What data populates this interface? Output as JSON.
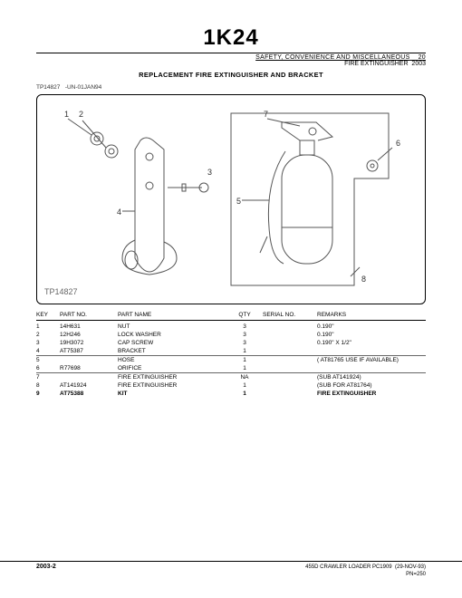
{
  "page_code": "1K24",
  "section_title": "SAFETY, CONVENIENCE AND MISCELLANEOUS",
  "section_num": "20",
  "section_sub": "FIRE EXTINGUISHER",
  "section_sub_code": "2003",
  "title": "REPLACEMENT FIRE EXTINGUISHER AND BRACKET",
  "tp_ref": "TP14827",
  "tp_date": "-UN-01JAN94",
  "fig_caption": "TP14827",
  "callouts": [
    "1",
    "2",
    "3",
    "4",
    "5",
    "6",
    "7",
    "8"
  ],
  "table": {
    "headers": {
      "key": "KEY",
      "part_no": "PART NO.",
      "part_name": "PART NAME",
      "qty": "QTY",
      "serial": "SERIAL NO.",
      "remarks": "REMARKS"
    },
    "rows": [
      {
        "key": "1",
        "part": "14H631",
        "name": "NUT",
        "qty": "3",
        "serial": "",
        "remarks": "0.190\""
      },
      {
        "key": "2",
        "part": "12H246",
        "name": "LOCK WASHER",
        "qty": "3",
        "serial": "",
        "remarks": "0.190\""
      },
      {
        "key": "3",
        "part": "19H3072",
        "name": "CAP SCREW",
        "qty": "3",
        "serial": "",
        "remarks": "0.190\" X 1/2\""
      },
      {
        "key": "4",
        "part": "AT75387",
        "name": "BRACKET",
        "qty": "1",
        "serial": "",
        "remarks": ""
      },
      {
        "key": "5",
        "part": "",
        "name": "HOSE",
        "qty": "1",
        "serial": "",
        "remarks": "( AT81765 USE IF AVAILABLE)",
        "divider_before": true
      },
      {
        "key": "6",
        "part": "R77698",
        "name": "ORIFICE",
        "qty": "1",
        "serial": "",
        "remarks": ""
      },
      {
        "key": "7",
        "part": "",
        "name": "FIRE EXTINGUISHER",
        "qty": "NA",
        "serial": "",
        "remarks": "(SUB AT141924)",
        "divider_before": true
      },
      {
        "key": "8",
        "part": "AT141924",
        "name": "FIRE EXTINGUISHER",
        "qty": "1",
        "serial": "",
        "remarks": "(SUB FOR AT81764)"
      },
      {
        "key": "9",
        "part": "AT75388",
        "name": "KIT",
        "qty": "1",
        "serial": "",
        "remarks": "FIRE EXTINGUISHER",
        "bold": true
      }
    ]
  },
  "footer": {
    "left": "2003-2",
    "right_main": "455D CRAWLER LOADER   PC1909",
    "right_date": "(29-NOV-93)",
    "right_pn": "PN=250"
  }
}
